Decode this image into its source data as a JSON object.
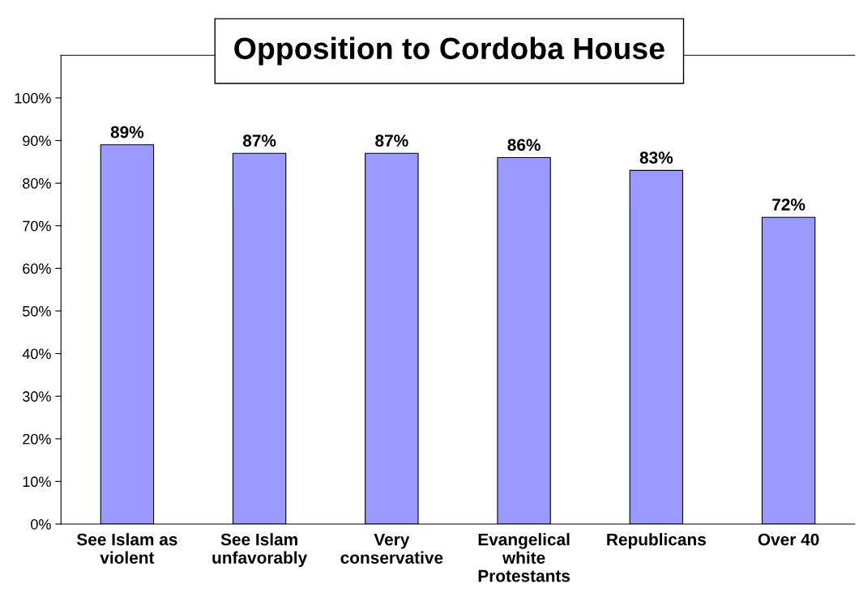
{
  "chart_data": {
    "type": "bar",
    "title": "Opposition to Cordoba House",
    "categories": [
      "See Islam as\nviolent",
      "See Islam\nunfavorably",
      "Very\nconservative",
      "Evangelical\nwhite\nProtestants",
      "Republicans",
      "Over 40"
    ],
    "values": [
      89,
      87,
      87,
      86,
      83,
      72
    ],
    "value_labels": [
      "89%",
      "87%",
      "87%",
      "86%",
      "83%",
      "72%"
    ],
    "color": "#9999ff",
    "ylim": [
      0,
      110
    ],
    "yticks": [
      {
        "value": 0,
        "label": "0%"
      },
      {
        "value": 10,
        "label": "10%"
      },
      {
        "value": 20,
        "label": "20%"
      },
      {
        "value": 30,
        "label": "30%"
      },
      {
        "value": 40,
        "label": "40%"
      },
      {
        "value": 50,
        "label": "50%"
      },
      {
        "value": 60,
        "label": "60%"
      },
      {
        "value": 70,
        "label": "70%"
      },
      {
        "value": 80,
        "label": "80%"
      },
      {
        "value": 90,
        "label": "90%"
      },
      {
        "value": 100,
        "label": "100%"
      }
    ],
    "grid": false,
    "legend": false
  }
}
